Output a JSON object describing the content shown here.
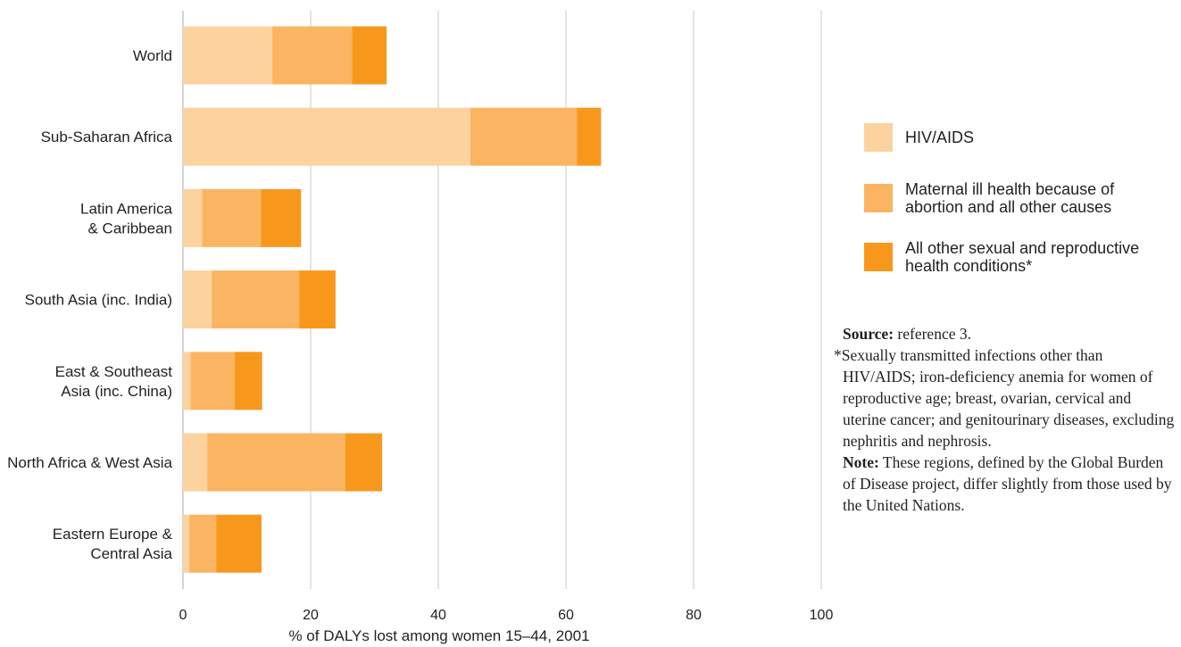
{
  "chart_data": {
    "type": "bar",
    "orientation": "horizontal",
    "stacked": true,
    "categories": [
      "World",
      "Sub-Saharan Africa",
      "Latin America\n& Caribbean",
      "South Asia (inc. India)",
      "East & Southeast\nAsia (inc. China)",
      "North Africa & West Asia",
      "Eastern Europe &\nCentral Asia"
    ],
    "series": [
      {
        "name": "HIV/AIDS",
        "color": "#fcd29f",
        "values": [
          14,
          45,
          3,
          4.5,
          1.2,
          3.8,
          1
        ]
      },
      {
        "name": "Maternal ill health because of\nabortion and all other causes",
        "color": "#fbb462",
        "values": [
          12.5,
          16.7,
          9.2,
          13.7,
          6.9,
          21.6,
          4.2
        ]
      },
      {
        "name": "All other sexual and reproductive\nhealth conditions*",
        "color": "#f7981d",
        "values": [
          5.4,
          3.8,
          6.3,
          5.7,
          4.3,
          5.8,
          7.1
        ]
      }
    ],
    "xlabel": "% of DALYs lost among women 15–44, 2001",
    "xlim": [
      0,
      100
    ],
    "xticks": [
      0,
      20,
      40,
      60,
      80,
      100
    ],
    "grid": true,
    "legend_position": "right"
  },
  "notes": {
    "source_label": "Source:",
    "source_text": "reference 3.",
    "footnote": "*Sexually transmitted infections other than HIV/AIDS; iron-deficiency anemia for women of reproductive age; breast, ovarian, cervical and uterine cancer; and genitourinary diseases, excluding nephritis and nephrosis.",
    "note_label": "Note:",
    "note_text": "These regions, defined by the Global Burden of Disease project, differ slightly from those used by the United Nations."
  }
}
